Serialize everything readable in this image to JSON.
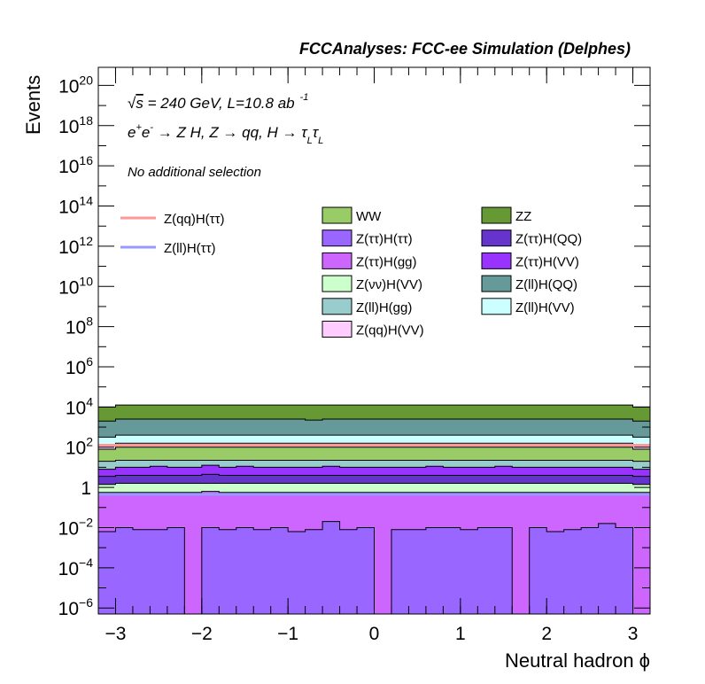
{
  "chart_data": {
    "type": "area",
    "stacked": true,
    "header": "FCCAnalyses: FCC-ee Simulation (Delphes)",
    "xlabel": "Neutral hadron ϕ",
    "ylabel": "Events",
    "xlim": [
      -3.2,
      3.2
    ],
    "ylim_log10": [
      -6.3,
      20.9
    ],
    "log_y": true,
    "x_ticks": [
      "−3",
      "−2",
      "−1",
      "0",
      "1",
      "2",
      "3"
    ],
    "x_tick_values": [
      -3,
      -2,
      -1,
      0,
      1,
      2,
      3
    ],
    "y_ticks": [
      {
        "base": "10",
        "exp": "20",
        "value_log10": 20
      },
      {
        "base": "10",
        "exp": "18",
        "value_log10": 18
      },
      {
        "base": "10",
        "exp": "16",
        "value_log10": 16
      },
      {
        "base": "10",
        "exp": "14",
        "value_log10": 14
      },
      {
        "base": "10",
        "exp": "12",
        "value_log10": 12
      },
      {
        "base": "10",
        "exp": "10",
        "value_log10": 10
      },
      {
        "base": "10",
        "exp": "8",
        "value_log10": 8
      },
      {
        "base": "10",
        "exp": "6",
        "value_log10": 6
      },
      {
        "base": "10",
        "exp": "4",
        "value_log10": 4
      },
      {
        "base": "10",
        "exp": "2",
        "value_log10": 2
      },
      {
        "base": "1",
        "exp": "",
        "value_log10": 0
      },
      {
        "base": "10",
        "exp": "−2",
        "value_log10": -2
      },
      {
        "base": "10",
        "exp": "−4",
        "value_log10": -4
      },
      {
        "base": "10",
        "exp": "−6",
        "value_log10": -6
      }
    ],
    "annotations": {
      "line1_sqrt": "√",
      "line1_s": "s",
      "line1_rest": " = 240 GeV, L=10.8 ab",
      "line1_sup": "-1",
      "line2": "e⁺e⁻ → Z H, Z → qq, H → τₗτₗ",
      "line2_parts": {
        "a": "e",
        "a_sup": "+",
        "b": "e",
        "b_sup": "-",
        "c": " → Z H, Z  → qq, H  → ",
        "d": "τ",
        "d_sub": "L",
        "e": "τ",
        "e_sub": "L"
      },
      "line3": "No additional selection"
    },
    "bins_x_edges": [
      -3.2,
      -3.0,
      -2.8,
      -2.6,
      -2.4,
      -2.2,
      -2.0,
      -1.8,
      -1.6,
      -1.4,
      -1.2,
      -1.0,
      -0.8,
      -0.6,
      -0.4,
      -0.2,
      0.0,
      0.2,
      0.4,
      0.6,
      0.8,
      1.0,
      1.2,
      1.4,
      1.6,
      1.8,
      2.0,
      2.2,
      2.4,
      2.6,
      2.8,
      3.0,
      3.2
    ],
    "stack_order_bottom_to_top": [
      "Z(ττ)H(ττ)",
      "Z(ττ)H(gg)",
      "Z(νν)H(VV)",
      "Z(ττ)H(QQ)",
      "Z(ττ)H(VV)",
      "Z(ll)H(gg)",
      "WW",
      "Z(qq)H(VV)",
      "Z(ll)H(VV)",
      "Z(ll)H(QQ)",
      "ZZ"
    ],
    "stack_top_log10": {
      "Z(ττ)H(ττ)": [
        -2.2,
        -2.0,
        -2.1,
        -2.1,
        -2.0,
        -6.3,
        -2.0,
        -2.1,
        -2.0,
        -2.1,
        -2.0,
        -2.2,
        -2.1,
        -1.7,
        -2.1,
        -2.0,
        -6.3,
        -2.1,
        -2.1,
        -2.0,
        -2.0,
        -2.1,
        -2.0,
        -2.0,
        -6.3,
        -2.0,
        -2.2,
        -2.1,
        -2.0,
        -1.8,
        -2.0,
        -6.3
      ],
      "Z(ττ)H(gg)": [
        -0.25,
        -0.25,
        -0.25,
        -0.25,
        -0.25,
        -0.25,
        -0.2,
        -0.25,
        -0.25,
        -0.25,
        -0.25,
        -0.25,
        -0.25,
        -0.25,
        -0.25,
        -0.25,
        -0.25,
        -0.25,
        -0.25,
        -0.25,
        -0.25,
        -0.25,
        -0.25,
        -0.25,
        -0.25,
        -0.25,
        -0.25,
        -0.25,
        -0.25,
        -0.25,
        -0.25,
        -0.25
      ],
      "Z(νν)H(VV)": [
        0.15,
        0.2,
        0.2,
        0.2,
        0.2,
        0.2,
        0.2,
        0.2,
        0.2,
        0.2,
        0.2,
        0.2,
        0.2,
        0.2,
        0.2,
        0.2,
        0.2,
        0.2,
        0.2,
        0.2,
        0.2,
        0.2,
        0.2,
        0.2,
        0.2,
        0.2,
        0.2,
        0.2,
        0.2,
        0.2,
        0.2,
        0.15
      ],
      "Z(ττ)H(QQ)": [
        0.55,
        0.6,
        0.6,
        0.6,
        0.6,
        0.6,
        0.65,
        0.6,
        0.6,
        0.6,
        0.6,
        0.6,
        0.6,
        0.6,
        0.6,
        0.6,
        0.6,
        0.6,
        0.6,
        0.6,
        0.6,
        0.6,
        0.6,
        0.6,
        0.6,
        0.6,
        0.6,
        0.6,
        0.6,
        0.6,
        0.6,
        0.55
      ],
      "Z(ττ)H(VV)": [
        0.9,
        1.0,
        1.0,
        1.05,
        1.0,
        1.0,
        1.1,
        1.0,
        1.05,
        1.0,
        1.0,
        1.0,
        1.0,
        1.05,
        1.0,
        1.0,
        1.0,
        1.0,
        1.0,
        1.05,
        1.0,
        1.0,
        1.0,
        1.05,
        1.0,
        1.0,
        1.0,
        1.0,
        1.0,
        1.0,
        1.0,
        0.9
      ],
      "Z(ll)H(gg)": [
        1.3,
        1.35,
        1.35,
        1.35,
        1.35,
        1.35,
        1.35,
        1.35,
        1.35,
        1.35,
        1.35,
        1.35,
        1.35,
        1.35,
        1.35,
        1.35,
        1.35,
        1.35,
        1.35,
        1.35,
        1.35,
        1.35,
        1.35,
        1.35,
        1.35,
        1.35,
        1.35,
        1.35,
        1.35,
        1.35,
        1.35,
        1.3
      ],
      "WW": [
        1.9,
        2.0,
        2.0,
        2.0,
        2.0,
        2.0,
        2.0,
        2.0,
        2.0,
        2.0,
        2.0,
        2.0,
        2.0,
        2.0,
        2.0,
        2.0,
        2.0,
        2.0,
        2.0,
        2.0,
        2.0,
        2.0,
        2.0,
        2.0,
        2.0,
        2.0,
        2.0,
        2.0,
        2.0,
        2.0,
        2.0,
        1.9
      ],
      "Z(qq)H(VV)": [
        2.1,
        2.2,
        2.2,
        2.2,
        2.2,
        2.2,
        2.2,
        2.2,
        2.2,
        2.2,
        2.2,
        2.2,
        2.2,
        2.2,
        2.2,
        2.2,
        2.2,
        2.2,
        2.2,
        2.2,
        2.2,
        2.2,
        2.2,
        2.2,
        2.2,
        2.2,
        2.2,
        2.2,
        2.2,
        2.2,
        2.2,
        2.1
      ],
      "Z(ll)H(VV)": [
        2.5,
        2.6,
        2.6,
        2.6,
        2.6,
        2.6,
        2.6,
        2.6,
        2.6,
        2.6,
        2.6,
        2.6,
        2.6,
        2.6,
        2.6,
        2.6,
        2.6,
        2.6,
        2.6,
        2.6,
        2.6,
        2.6,
        2.6,
        2.6,
        2.6,
        2.6,
        2.6,
        2.6,
        2.6,
        2.6,
        2.6,
        2.5
      ],
      "Z(ll)H(QQ)": [
        3.3,
        3.4,
        3.4,
        3.4,
        3.4,
        3.4,
        3.4,
        3.4,
        3.4,
        3.4,
        3.4,
        3.4,
        3.35,
        3.4,
        3.4,
        3.4,
        3.4,
        3.4,
        3.4,
        3.4,
        3.4,
        3.4,
        3.4,
        3.4,
        3.4,
        3.4,
        3.4,
        3.4,
        3.4,
        3.4,
        3.4,
        3.3
      ],
      "ZZ": [
        4.0,
        4.1,
        4.1,
        4.1,
        4.1,
        4.1,
        4.1,
        4.1,
        4.1,
        4.1,
        4.1,
        4.1,
        4.1,
        4.1,
        4.1,
        4.1,
        4.1,
        4.1,
        4.1,
        4.1,
        4.1,
        4.1,
        4.1,
        4.1,
        4.1,
        4.1,
        4.1,
        4.1,
        4.1,
        4.1,
        4.1,
        4.0
      ]
    },
    "series": [
      {
        "name": "WW",
        "color": "#99cc66",
        "kind": "stack"
      },
      {
        "name": "ZZ",
        "color": "#669933",
        "kind": "stack"
      },
      {
        "name": "Z(ττ)H(ττ)",
        "color": "#9966ff",
        "kind": "stack"
      },
      {
        "name": "Z(ττ)H(QQ)",
        "color": "#6633cc",
        "kind": "stack"
      },
      {
        "name": "Z(ττ)H(gg)",
        "color": "#cc66ff",
        "kind": "stack"
      },
      {
        "name": "Z(ττ)H(VV)",
        "color": "#9933ff",
        "kind": "stack"
      },
      {
        "name": "Z(νν)H(VV)",
        "color": "#ccffcc",
        "kind": "stack"
      },
      {
        "name": "Z(ll)H(QQ)",
        "color": "#669999",
        "kind": "stack"
      },
      {
        "name": "Z(ll)H(gg)",
        "color": "#99cccc",
        "kind": "stack"
      },
      {
        "name": "Z(ll)H(VV)",
        "color": "#ccffff",
        "kind": "stack"
      },
      {
        "name": "Z(qq)H(VV)",
        "color": "#ffccff",
        "kind": "stack"
      }
    ],
    "signals": [
      {
        "name": "Z(qq)H(ττ)",
        "color": "#ff9999",
        "level_log10": 2.1
      },
      {
        "name": "Z(ll)H(ττ)",
        "color": "#9999ff",
        "level_log10": -0.35
      }
    ]
  }
}
